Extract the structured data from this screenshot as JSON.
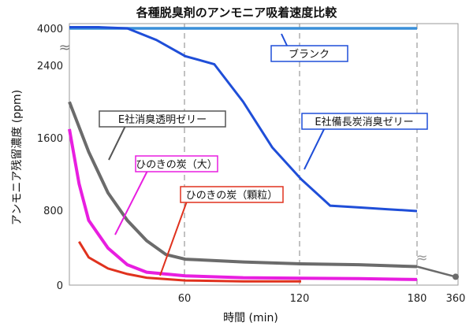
{
  "chart_data": {
    "type": "line",
    "title": "各種脱臭剤のアンモニア吸着速度比較",
    "xlabel": "時間 (min)",
    "ylabel": "アンモニア残留濃度 (ppm)",
    "x_ticks": [
      "60",
      "120",
      "180",
      "360"
    ],
    "y_ticks": [
      "4000",
      "2400",
      "1600",
      "800",
      "0"
    ],
    "y_break_symbol": "≈",
    "x_break_symbol": "≈",
    "series": [
      {
        "name": "ブランク",
        "color": "#3a8fd8",
        "points": [
          [
            0,
            4000
          ],
          [
            30,
            4000
          ],
          [
            60,
            4000
          ],
          [
            90,
            4000
          ],
          [
            120,
            4000
          ],
          [
            150,
            4000
          ],
          [
            180,
            4000
          ]
        ]
      },
      {
        "name": "E社備長炭消臭ゼリー",
        "color": "#1f4ed8",
        "points": [
          [
            0,
            4050
          ],
          [
            15,
            4050
          ],
          [
            30,
            4000
          ],
          [
            45,
            3500
          ],
          [
            60,
            2800
          ],
          [
            75,
            2450
          ],
          [
            90,
            2000
          ],
          [
            105,
            1500
          ],
          [
            120,
            1150
          ],
          [
            135,
            860
          ],
          [
            150,
            840
          ],
          [
            165,
            820
          ],
          [
            180,
            800
          ]
        ]
      },
      {
        "name": "E社消臭透明ゼリー",
        "color": "#6b6b6b",
        "points": [
          [
            0,
            2000
          ],
          [
            10,
            1450
          ],
          [
            20,
            1000
          ],
          [
            30,
            700
          ],
          [
            40,
            480
          ],
          [
            50,
            330
          ],
          [
            60,
            280
          ],
          [
            90,
            250
          ],
          [
            120,
            230
          ],
          [
            150,
            220
          ],
          [
            180,
            200
          ],
          [
            360,
            90
          ]
        ]
      },
      {
        "name": "ひのきの炭（大）",
        "color": "#e81ee0",
        "points": [
          [
            0,
            1700
          ],
          [
            5,
            1100
          ],
          [
            10,
            700
          ],
          [
            20,
            400
          ],
          [
            30,
            220
          ],
          [
            40,
            140
          ],
          [
            60,
            100
          ],
          [
            90,
            80
          ],
          [
            120,
            75
          ],
          [
            150,
            70
          ],
          [
            180,
            60
          ]
        ]
      },
      {
        "name": "ひのきの炭（顆粒）",
        "color": "#e0321e",
        "points": [
          [
            5,
            470
          ],
          [
            10,
            300
          ],
          [
            20,
            180
          ],
          [
            30,
            120
          ],
          [
            40,
            80
          ],
          [
            60,
            50
          ],
          [
            90,
            40
          ],
          [
            120,
            40
          ]
        ]
      }
    ],
    "labels": [
      {
        "text": "ブランク",
        "series": 0
      },
      {
        "text": "E社消臭透明ゼリー",
        "series": 2
      },
      {
        "text": "E社備長炭消臭ゼリー",
        "series": 1
      },
      {
        "text": "ひのきの炭（大）",
        "series": 3
      },
      {
        "text": "ひのきの炭（顆粒）",
        "series": 4
      }
    ]
  }
}
